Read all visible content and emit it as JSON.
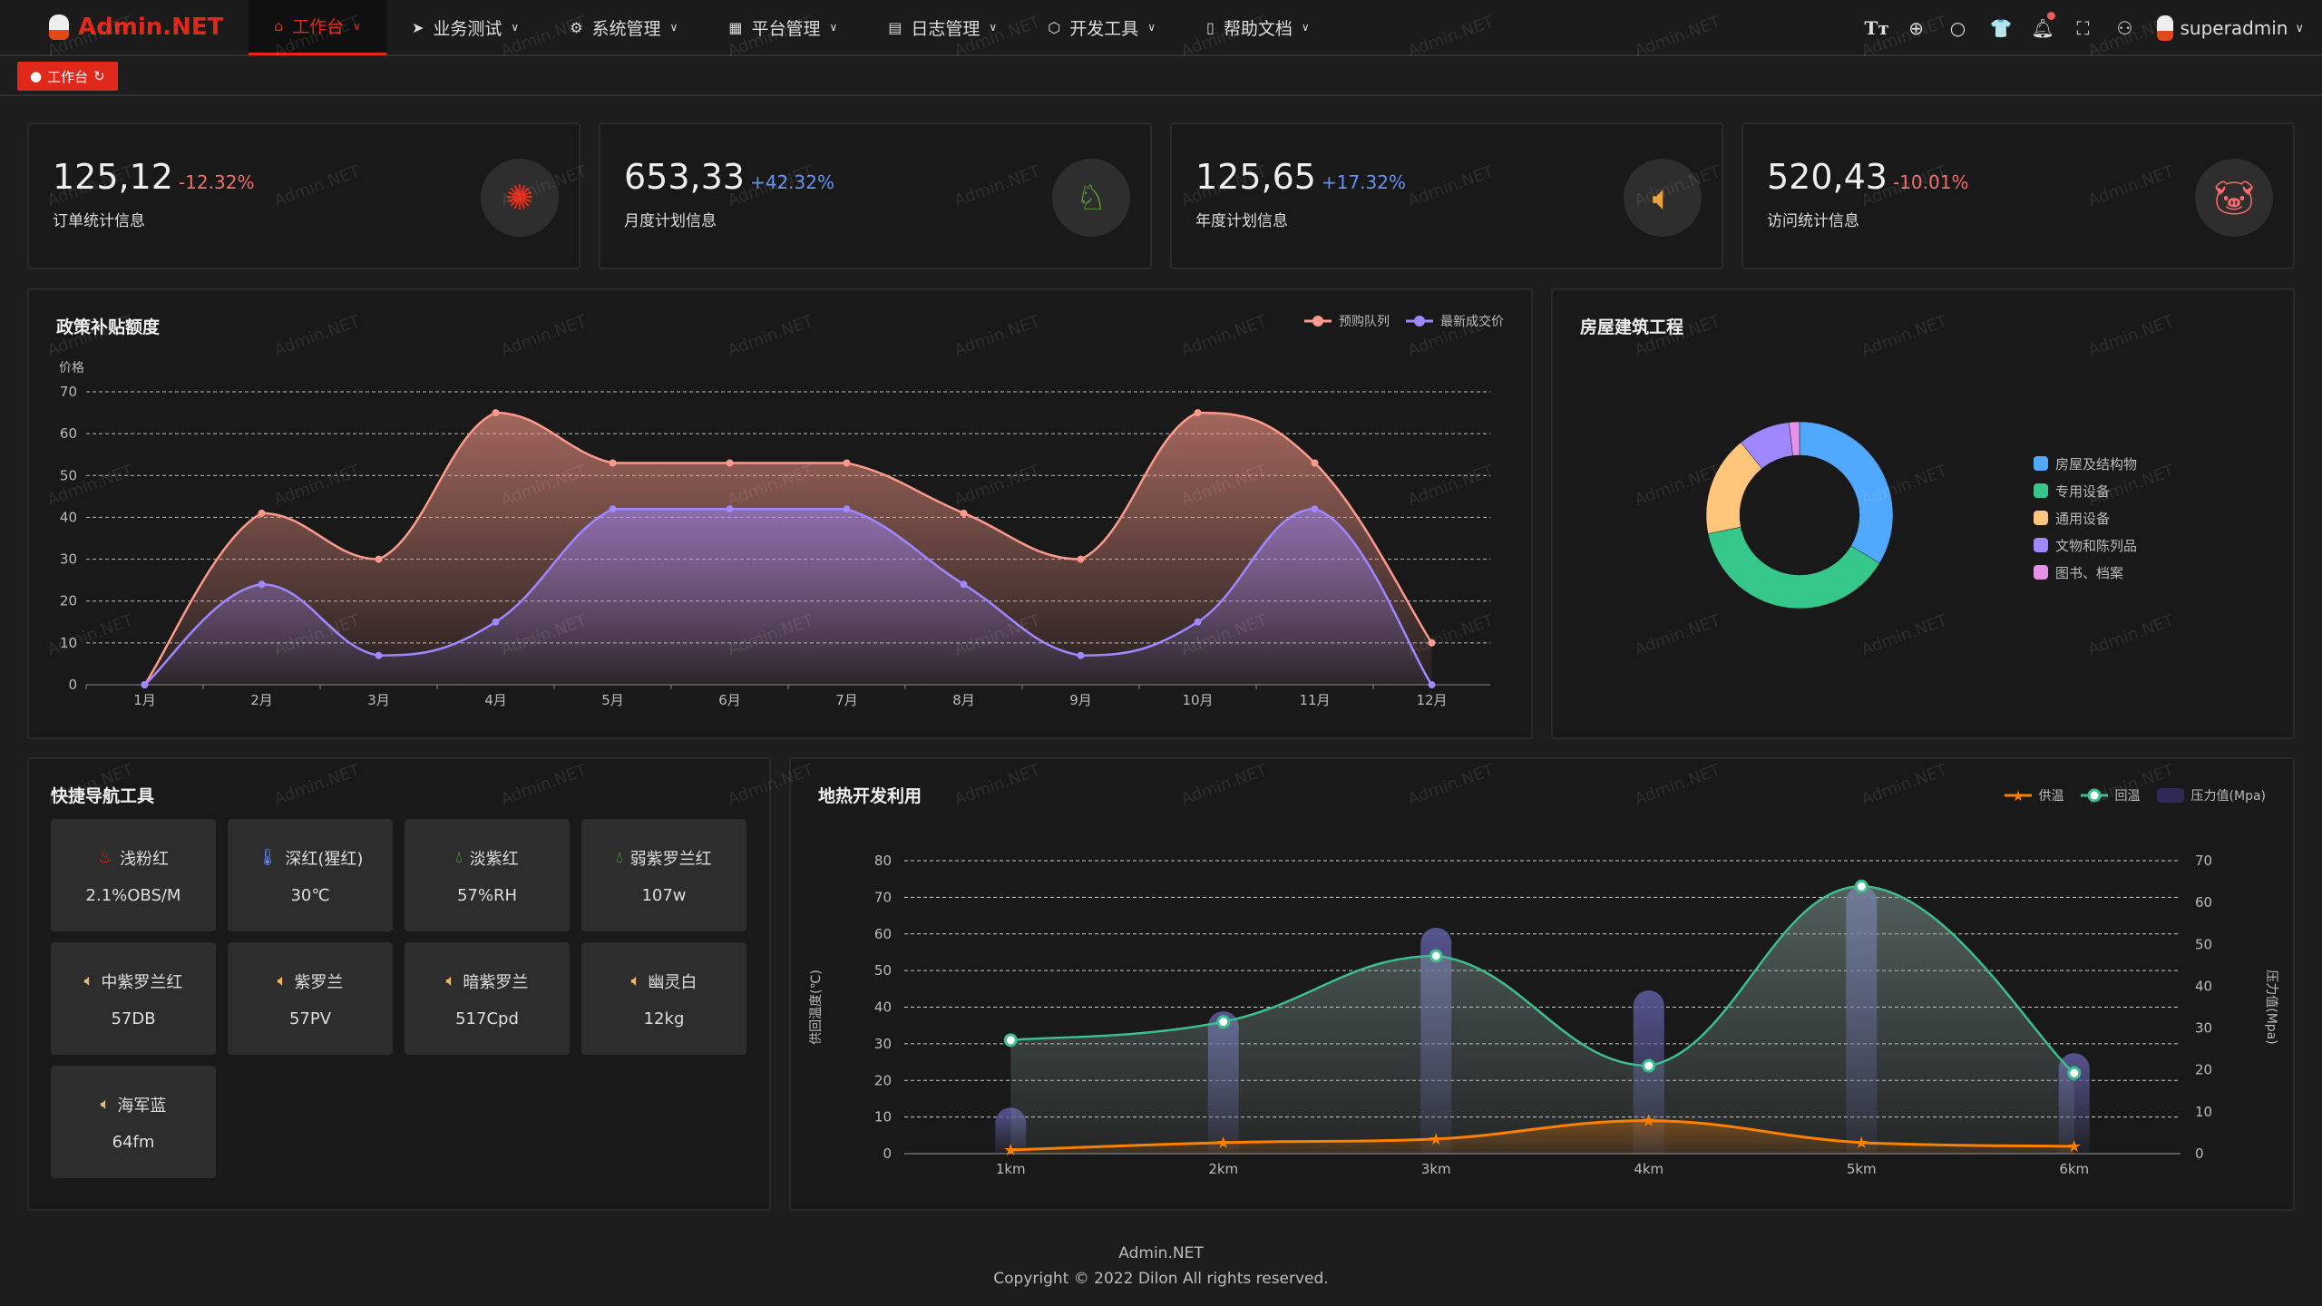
{
  "app": {
    "title": "Admin.NET"
  },
  "menu": [
    {
      "label": "工作台",
      "icon": "home-icon",
      "active": true
    },
    {
      "label": "业务测试",
      "icon": "send-icon"
    },
    {
      "label": "系统管理",
      "icon": "gear-icon"
    },
    {
      "label": "平台管理",
      "icon": "grid-icon"
    },
    {
      "label": "日志管理",
      "icon": "document-icon"
    },
    {
      "label": "开发工具",
      "icon": "chip-icon"
    },
    {
      "label": "帮助文档",
      "icon": "book-icon"
    }
  ],
  "toolbar": {
    "icons": [
      "font-size-icon",
      "language-icon",
      "search-icon",
      "theme-shirt-icon",
      "bell-icon",
      "fullscreen-icon",
      "user-icon"
    ],
    "username": "superadmin",
    "notification_dot": true
  },
  "tags": [
    {
      "label": "工作台"
    }
  ],
  "stats": [
    {
      "value": "125,12",
      "change": "-12.32%",
      "change_color": "#f56c6c",
      "label": "订单统计信息",
      "icon": "stamp-icon",
      "icon_color": "#e0291a"
    },
    {
      "value": "653,33",
      "change": "+42.32%",
      "change_color": "#6690f9",
      "label": "月度计划信息",
      "icon": "china-map-icon",
      "icon_color": "#6ac03c"
    },
    {
      "value": "125,65",
      "change": "+17.32%",
      "change_color": "#6690f9",
      "label": "年度计划信息",
      "icon": "speaker-icon",
      "icon_color": "#e9a23b"
    },
    {
      "value": "520,43",
      "change": "-10.01%",
      "change_color": "#f56c6c",
      "label": "访问统计信息",
      "icon": "pig-icon",
      "icon_color": "#f56c6c"
    }
  ],
  "chart_data": [
    {
      "type": "area",
      "title": "政策补贴额度",
      "ylabel": "价格",
      "ylim": [
        0,
        70
      ],
      "yticks": [
        0,
        10,
        20,
        30,
        40,
        50,
        60,
        70
      ],
      "grid": true,
      "legend": "top-right",
      "categories": [
        "1月",
        "2月",
        "3月",
        "4月",
        "5月",
        "6月",
        "7月",
        "8月",
        "9月",
        "10月",
        "11月",
        "12月"
      ],
      "series": [
        {
          "name": "预购队列",
          "color": "#fe9a8b",
          "values": [
            0,
            41,
            30,
            65,
            53,
            53,
            53,
            41,
            30,
            65,
            53,
            10
          ]
        },
        {
          "name": "最新成交价",
          "color": "#9e87ff",
          "values": [
            0,
            24,
            7,
            15,
            42,
            42,
            42,
            24,
            7,
            15,
            42,
            0
          ]
        }
      ]
    },
    {
      "type": "pie",
      "title": "房屋建筑工程",
      "legend": "right",
      "categories": [
        "房屋及结构物",
        "专用设备",
        "通用设备",
        "文物和陈列品",
        "图书、档案"
      ],
      "values": [
        33.6,
        38.2,
        17.4,
        9,
        1.8
      ],
      "colors": [
        "#51a9ff",
        "#36c78b",
        "#ffc57a",
        "#9e87ff",
        "#e690e8"
      ]
    },
    {
      "type": "line-bar",
      "title": "地热开发利用",
      "legend": "top-right",
      "categories": [
        "1km",
        "2km",
        "3km",
        "4km",
        "5km",
        "6km"
      ],
      "ylabel_left": "供回温度(℃)",
      "ylabel_right": "压力值(Mpa)",
      "ylim_left": [
        0,
        80
      ],
      "yticks_left": [
        0,
        10,
        20,
        30,
        40,
        50,
        60,
        70,
        80
      ],
      "ylim_right": [
        0,
        70
      ],
      "yticks_right": [
        0,
        10,
        20,
        30,
        40,
        50,
        60,
        70
      ],
      "series": [
        {
          "name": "供温",
          "type": "line",
          "axis": "left",
          "color": "#fd8000",
          "values": [
            1,
            3,
            4,
            9,
            3,
            2
          ]
        },
        {
          "name": "回温",
          "type": "line",
          "axis": "left",
          "color": "#3bbf8c",
          "values": [
            31,
            36,
            54,
            24,
            73,
            22
          ]
        },
        {
          "name": "压力值(Mpa)",
          "type": "bar",
          "axis": "right",
          "color": "#2f2a55",
          "values": [
            11,
            34,
            54,
            39,
            64,
            24
          ]
        }
      ]
    }
  ],
  "quicknav": {
    "title": "快捷导航工具",
    "items": [
      {
        "label": "浅粉红",
        "value": "2.1%OBS/M",
        "icon": "cake-icon",
        "color": "#e0291a"
      },
      {
        "label": "深红(猩红)",
        "value": "30℃",
        "icon": "thermometer-icon",
        "color": "#6690f9"
      },
      {
        "label": "淡紫红",
        "value": "57%RH",
        "icon": "drops-icon",
        "color": "#6ac03c"
      },
      {
        "label": "弱紫罗兰红",
        "value": "107w",
        "icon": "drops-icon",
        "color": "#6ac03c"
      },
      {
        "label": "中紫罗兰红",
        "value": "57DB",
        "icon": "speaker-icon",
        "color": "#e9b86b"
      },
      {
        "label": "紫罗兰",
        "value": "57PV",
        "icon": "speaker-icon",
        "color": "#e9b86b"
      },
      {
        "label": "暗紫罗兰",
        "value": "517Cpd",
        "icon": "speaker-icon",
        "color": "#e9b86b"
      },
      {
        "label": "幽灵白",
        "value": "12kg",
        "icon": "speaker-icon",
        "color": "#e9b86b"
      },
      {
        "label": "海军蓝",
        "value": "64fm",
        "icon": "speaker-icon",
        "color": "#e9b86b"
      }
    ]
  },
  "footer": {
    "brand": "Admin.NET",
    "copyright": "Copyright © 2022 Dilon All rights reserved."
  },
  "watermark": "Admin.NET",
  "colors": {
    "accent": "#e0291a"
  }
}
